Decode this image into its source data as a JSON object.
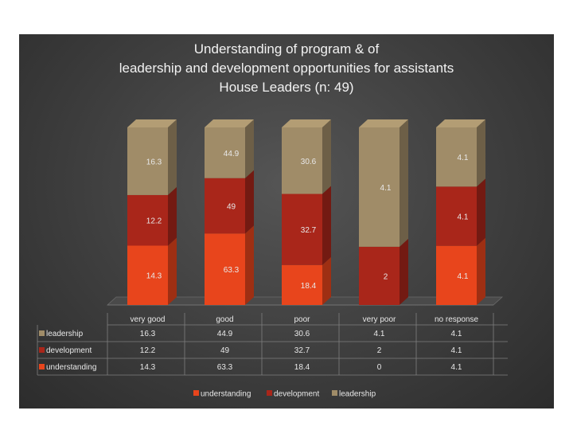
{
  "chart_data": {
    "type": "bar",
    "stacked": true,
    "title_lines": [
      "Understanding of program & of",
      "leadership and development opportunities for assistants",
      "House Leaders (n: 49)"
    ],
    "categories": [
      "very good",
      "good",
      "poor",
      "very poor",
      "no response"
    ],
    "series": [
      {
        "name": "understanding",
        "values": [
          14.3,
          63.3,
          18.4,
          0,
          4.1
        ],
        "color": "#e8451c"
      },
      {
        "name": "development",
        "values": [
          12.2,
          49,
          32.7,
          2,
          4.1
        ],
        "color": "#a9261a"
      },
      {
        "name": "leadership",
        "values": [
          16.3,
          44.9,
          30.6,
          4.1,
          4.1
        ],
        "color": "#a08c68"
      }
    ],
    "normalized": true,
    "data_table": true,
    "legend_position": "bottom",
    "legend": [
      "understanding",
      "development",
      "leadership"
    ],
    "data_table_rows": [
      {
        "series": "leadership",
        "values": [
          "16.3",
          "44.9",
          "30.6",
          "4.1",
          "4.1"
        ]
      },
      {
        "series": "development",
        "values": [
          "12.2",
          "49",
          "32.7",
          "2",
          "4.1"
        ]
      },
      {
        "series": "understanding",
        "values": [
          "14.3",
          "63.3",
          "18.4",
          "0",
          "4.1"
        ]
      }
    ]
  }
}
